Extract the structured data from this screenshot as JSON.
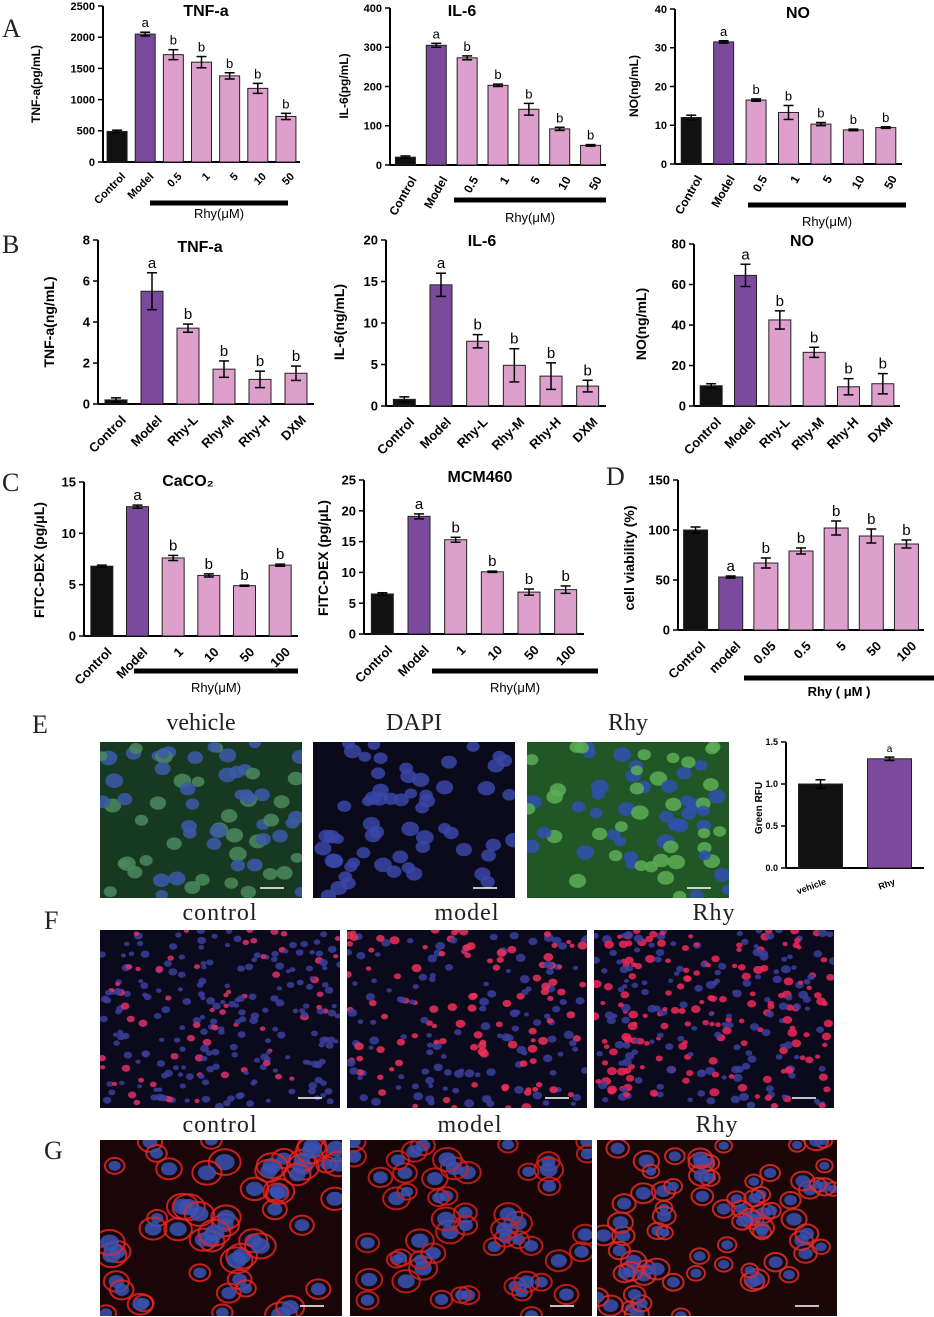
{
  "panel_letters": [
    "A",
    "B",
    "C",
    "D",
    "E",
    "F",
    "G"
  ],
  "chart_data": [
    {
      "id": "A1",
      "type": "bar",
      "title": "TNF-a",
      "ylabel": "TNF-a(pg/mL)",
      "ylim": [
        0,
        2500
      ],
      "yticks": [
        0,
        500,
        1000,
        1500,
        2000,
        2500
      ],
      "categories": [
        "Control",
        "Model",
        "0.5",
        "1",
        "5",
        "10",
        "50"
      ],
      "values": [
        490,
        2050,
        1720,
        1600,
        1380,
        1180,
        730
      ],
      "errors": [
        20,
        30,
        80,
        90,
        50,
        80,
        50
      ],
      "letters": [
        "",
        "a",
        "b",
        "b",
        "b",
        "b",
        "b"
      ],
      "group_label": "Rhy(μM)",
      "colors": [
        "#111111",
        "#7b4a9c",
        "#dda0cc",
        "#dda0cc",
        "#dda0cc",
        "#dda0cc",
        "#dda0cc"
      ]
    },
    {
      "id": "A2",
      "type": "bar",
      "title": "IL-6",
      "ylabel": "IL-6(pg/mL)",
      "ylim": [
        0,
        400
      ],
      "yticks": [
        0,
        100,
        200,
        300,
        400
      ],
      "categories": [
        "Control",
        "Model",
        "0.5",
        "1",
        "5",
        "10",
        "50"
      ],
      "values": [
        20,
        305,
        273,
        203,
        142,
        92,
        50
      ],
      "errors": [
        3,
        5,
        5,
        3,
        15,
        4,
        2
      ],
      "letters": [
        "",
        "a",
        "b",
        "b",
        "b",
        "b",
        "b"
      ],
      "group_label": "Rhy(μM)",
      "colors": [
        "#111111",
        "#7b4a9c",
        "#dda0cc",
        "#dda0cc",
        "#dda0cc",
        "#dda0cc",
        "#dda0cc"
      ]
    },
    {
      "id": "A3",
      "type": "bar",
      "title": "NO",
      "ylabel": "NO(ng/mL)",
      "ylim": [
        0,
        40
      ],
      "yticks": [
        0,
        10,
        20,
        30,
        40
      ],
      "categories": [
        "Control",
        "Model",
        "0.5",
        "1",
        "5",
        "10",
        "50"
      ],
      "values": [
        12,
        31.5,
        16.5,
        13.3,
        10.3,
        8.8,
        9.4
      ],
      "errors": [
        0.6,
        0.3,
        0.3,
        1.8,
        0.4,
        0.2,
        0.2
      ],
      "letters": [
        "",
        "a",
        "b",
        "b",
        "b",
        "b",
        "b"
      ],
      "group_label": "Rhy(μM)",
      "colors": [
        "#111111",
        "#7b4a9c",
        "#dda0cc",
        "#dda0cc",
        "#dda0cc",
        "#dda0cc",
        "#dda0cc"
      ]
    },
    {
      "id": "B1",
      "type": "bar",
      "title": "TNF-a",
      "ylabel": "TNF-a(ng/mL)",
      "ylim": [
        0,
        8
      ],
      "yticks": [
        0,
        2,
        4,
        6,
        8
      ],
      "categories": [
        "Control",
        "Model",
        "Rhy-L",
        "Rhy-M",
        "Rhy-H",
        "DXM"
      ],
      "values": [
        0.2,
        5.5,
        3.7,
        1.7,
        1.2,
        1.5
      ],
      "errors": [
        0.1,
        0.9,
        0.2,
        0.4,
        0.4,
        0.35
      ],
      "letters": [
        "",
        "a",
        "b",
        "b",
        "b",
        "b"
      ],
      "group_label": "",
      "colors": [
        "#111111",
        "#7b4a9c",
        "#dda0cc",
        "#dda0cc",
        "#dda0cc",
        "#dda0cc"
      ]
    },
    {
      "id": "B2",
      "type": "bar",
      "title": "IL-6",
      "ylabel": "IL-6(ng/mL)",
      "ylim": [
        0,
        20
      ],
      "yticks": [
        0,
        5,
        10,
        15,
        20
      ],
      "categories": [
        "Control",
        "Model",
        "Rhy-L",
        "Rhy-M",
        "Rhy-H",
        "DXM"
      ],
      "values": [
        0.8,
        14.6,
        7.8,
        4.9,
        3.6,
        2.4
      ],
      "errors": [
        0.3,
        1.4,
        0.8,
        2.0,
        1.6,
        0.7
      ],
      "letters": [
        "",
        "a",
        "b",
        "b",
        "b",
        "b"
      ],
      "group_label": "",
      "colors": [
        "#111111",
        "#7b4a9c",
        "#dda0cc",
        "#dda0cc",
        "#dda0cc",
        "#dda0cc"
      ]
    },
    {
      "id": "B3",
      "type": "bar",
      "title": "NO",
      "ylabel": "NO(ng/mL)",
      "ylim": [
        0,
        80
      ],
      "yticks": [
        0,
        20,
        40,
        60,
        80
      ],
      "categories": [
        "Control",
        "Model",
        "Rhy-L",
        "Rhy-M",
        "Rhy-H",
        "DXM"
      ],
      "values": [
        10,
        64.5,
        42.5,
        26.5,
        9.5,
        11
      ],
      "errors": [
        1,
        5.5,
        4.5,
        2.5,
        4,
        5
      ],
      "letters": [
        "",
        "a",
        "b",
        "b",
        "b",
        "b"
      ],
      "group_label": "",
      "colors": [
        "#111111",
        "#7b4a9c",
        "#dda0cc",
        "#dda0cc",
        "#dda0cc",
        "#dda0cc"
      ]
    },
    {
      "id": "C1",
      "type": "bar",
      "title": "CaCO₂",
      "ylabel": "FITC-DEX (pg/μL)",
      "ylim": [
        0,
        15
      ],
      "yticks": [
        0,
        5,
        10,
        15
      ],
      "categories": [
        "Control",
        "Model",
        "1",
        "10",
        "50",
        "100"
      ],
      "values": [
        6.8,
        12.6,
        7.6,
        5.9,
        4.9,
        6.9
      ],
      "errors": [
        0.1,
        0.15,
        0.25,
        0.15,
        0.05,
        0.1
      ],
      "letters": [
        "",
        "a",
        "b",
        "b",
        "b",
        "b"
      ],
      "group_label": "Rhy(μM)",
      "colors": [
        "#111111",
        "#7b4a9c",
        "#dda0cc",
        "#dda0cc",
        "#dda0cc",
        "#dda0cc"
      ]
    },
    {
      "id": "C2",
      "type": "bar",
      "title": "MCM460",
      "ylabel": "FITC-DEX (pg/μL)",
      "ylim": [
        0,
        25
      ],
      "yticks": [
        0,
        5,
        10,
        15,
        20,
        25
      ],
      "categories": [
        "Control",
        "Model",
        "1",
        "10",
        "50",
        "100"
      ],
      "values": [
        6.5,
        19.1,
        15.3,
        10.1,
        6.8,
        7.2
      ],
      "errors": [
        0.2,
        0.4,
        0.4,
        0.1,
        0.5,
        0.6
      ],
      "letters": [
        "",
        "a",
        "b",
        "b",
        "b",
        "b"
      ],
      "group_label": "Rhy(μM)",
      "colors": [
        "#111111",
        "#7b4a9c",
        "#dda0cc",
        "#dda0cc",
        "#dda0cc",
        "#dda0cc"
      ]
    },
    {
      "id": "D",
      "type": "bar",
      "title": "",
      "ylabel": "cell viability (%)",
      "ylim": [
        0,
        150
      ],
      "yticks": [
        0,
        50,
        100,
        150
      ],
      "categories": [
        "Control",
        "model",
        "0.05",
        "0.5",
        "5",
        "50",
        "100"
      ],
      "values": [
        100,
        53,
        67,
        79,
        102,
        94,
        86
      ],
      "errors": [
        3,
        1,
        5,
        3,
        7,
        7,
        4
      ],
      "letters": [
        "",
        "a",
        "b",
        "b",
        "b",
        "b",
        "b"
      ],
      "group_label": "Rhy ( μM )",
      "colors": [
        "#111111",
        "#7b4a9c",
        "#dda0cc",
        "#dda0cc",
        "#dda0cc",
        "#dda0cc",
        "#dda0cc"
      ]
    },
    {
      "id": "E",
      "type": "bar",
      "title": "",
      "ylabel": "Green RFU",
      "ylim": [
        0,
        1.5
      ],
      "yticks": [
        0.0,
        0.5,
        1.0,
        1.5
      ],
      "categories": [
        "vehicle",
        "Rhy"
      ],
      "values": [
        1.0,
        1.3
      ],
      "errors": [
        0.05,
        0.02
      ],
      "letters": [
        "",
        "a"
      ],
      "group_label": "",
      "colors": [
        "#111111",
        "#7b4a9c"
      ]
    }
  ],
  "micrographs": {
    "E": {
      "labels": [
        "vehicle",
        "DAPI",
        "Rhy"
      ]
    },
    "F": {
      "labels": [
        "control",
        "model",
        "Rhy"
      ]
    },
    "G": {
      "labels": [
        "control",
        "model",
        "Rhy"
      ]
    }
  }
}
